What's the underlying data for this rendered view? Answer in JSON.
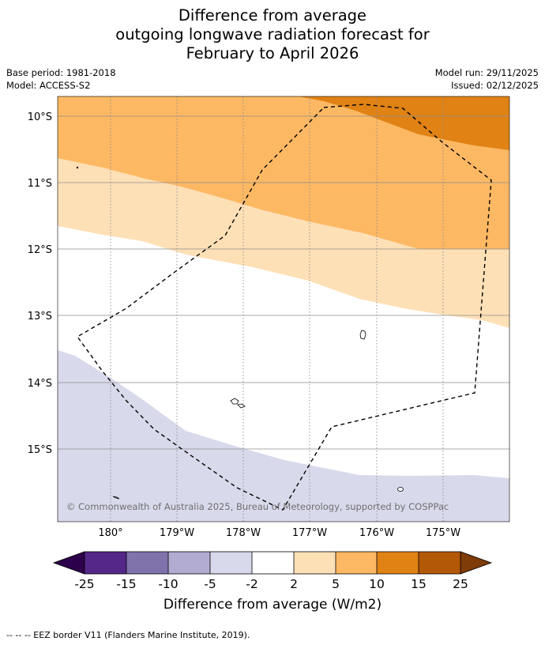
{
  "title": {
    "line1": "Difference from average",
    "line2": "outgoing longwave radiation forecast for",
    "line3": "February to April 2026"
  },
  "meta": {
    "base_period": "Base period: 1981-2018",
    "model": "Model: ACCESS-S2",
    "model_run": "Model run: 29/11/2025",
    "issued": "Issued: 02/12/2025"
  },
  "map": {
    "latitude_labels": [
      "10°S",
      "11°S",
      "12°S",
      "13°S",
      "14°S",
      "15°S"
    ],
    "longitude_labels": [
      "180°",
      "179°W",
      "178°W",
      "177°W",
      "176°W",
      "175°W"
    ],
    "credit": "© Commonwealth of Australia 2025, Bureau of Meteorology, supported by COSPPac",
    "zones": {
      "strong_positive_color": "#e08214",
      "positive_color": "#fdb863",
      "weak_positive_color": "#fee0b6",
      "neutral_color": "#ffffff",
      "weak_negative_color": "#d8daeb"
    }
  },
  "colorbar": {
    "ticks": [
      "-25",
      "-15",
      "-10",
      "-5",
      "-2",
      "2",
      "5",
      "10",
      "15",
      "25"
    ],
    "colors": [
      "#2d004b",
      "#542788",
      "#8073ac",
      "#b2abd2",
      "#d8daeb",
      "#ffffff",
      "#fee0b6",
      "#fdb863",
      "#e08214",
      "#b35806",
      "#7f3b08"
    ],
    "label": "Difference from average (W/m2)"
  },
  "footnote": "--  --  -- EEZ border V11 (Flanders Marine Institute, 2019)."
}
